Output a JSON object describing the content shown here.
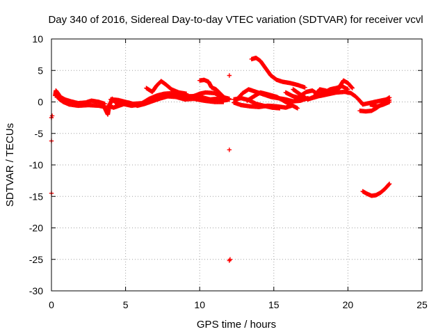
{
  "chart_data": {
    "type": "scatter",
    "title": "Day 340 of 2016, Sidereal Day-to-day VTEC variation (SDTVAR) for receiver vcvl",
    "xlabel": "GPS time / hours",
    "ylabel": "SDTVAR / TECUs",
    "xlim": [
      0,
      25
    ],
    "ylim": [
      -30,
      10
    ],
    "xticks": [
      0,
      5,
      10,
      15,
      20,
      25
    ],
    "yticks": [
      -30,
      -25,
      -20,
      -15,
      -10,
      -5,
      0,
      5,
      10
    ],
    "xtick_labels": [
      "0",
      "5",
      "10",
      "15",
      "20",
      "25"
    ],
    "ytick_labels": [
      "-30",
      "-25",
      "-20",
      "-15",
      "-10",
      "-5",
      "0",
      "5",
      "10"
    ],
    "grid": true,
    "marker": "plus",
    "colors": {
      "series": "#ff0000",
      "axis": "#000000",
      "grid": "#a0a0a0"
    },
    "series": [
      {
        "name": "SDTVAR",
        "polylines": [
          [
            [
              0.25,
              1.0
            ],
            [
              0.3,
              1.8
            ],
            [
              0.4,
              1.5
            ],
            [
              0.6,
              0.8
            ],
            [
              0.9,
              0.4
            ],
            [
              1.3,
              0.1
            ],
            [
              1.8,
              -0.2
            ],
            [
              2.3,
              -0.1
            ],
            [
              2.7,
              0.2
            ],
            [
              3.2,
              0.0
            ],
            [
              3.6,
              -0.3
            ]
          ],
          [
            [
              0.3,
              1.2
            ],
            [
              0.5,
              0.5
            ],
            [
              0.8,
              0.0
            ],
            [
              1.2,
              -0.4
            ],
            [
              1.8,
              -0.6
            ],
            [
              2.5,
              -0.5
            ],
            [
              3.2,
              -0.6
            ],
            [
              3.6,
              -0.8
            ]
          ],
          [
            [
              3.5,
              -0.5
            ],
            [
              3.7,
              -1.5
            ],
            [
              3.8,
              -2.0
            ],
            [
              3.9,
              -0.6
            ],
            [
              4.1,
              0.5
            ],
            [
              4.3,
              0.0
            ]
          ],
          [
            [
              3.8,
              -0.6
            ],
            [
              4.2,
              -0.9
            ],
            [
              4.8,
              -0.4
            ],
            [
              5.2,
              -0.1
            ],
            [
              5.8,
              -0.6
            ],
            [
              6.3,
              -0.3
            ],
            [
              6.9,
              0.2
            ],
            [
              7.4,
              0.6
            ],
            [
              8.0,
              1.0
            ],
            [
              8.6,
              1.2
            ],
            [
              9.1,
              0.9
            ],
            [
              9.6,
              0.9
            ],
            [
              10.0,
              1.3
            ],
            [
              10.4,
              1.5
            ],
            [
              11.0,
              1.4
            ],
            [
              11.5,
              0.8
            ],
            [
              12.0,
              0.5
            ]
          ],
          [
            [
              4.0,
              0.4
            ],
            [
              4.5,
              0.3
            ],
            [
              5.0,
              0.0
            ],
            [
              5.5,
              -0.3
            ],
            [
              6.1,
              -0.2
            ],
            [
              6.6,
              0.5
            ],
            [
              7.1,
              1.0
            ],
            [
              7.6,
              1.3
            ],
            [
              8.2,
              1.4
            ],
            [
              8.7,
              1.0
            ],
            [
              9.2,
              0.7
            ],
            [
              9.7,
              1.0
            ],
            [
              10.2,
              0.7
            ],
            [
              10.7,
              0.4
            ],
            [
              11.2,
              0.5
            ],
            [
              11.8,
              0.3
            ],
            [
              12.0,
              0.4
            ]
          ],
          [
            [
              4.3,
              -0.1
            ],
            [
              4.8,
              -0.3
            ],
            [
              5.4,
              -0.6
            ],
            [
              6.0,
              -0.4
            ],
            [
              6.6,
              0.0
            ],
            [
              7.2,
              0.5
            ],
            [
              7.8,
              0.9
            ],
            [
              8.4,
              0.8
            ],
            [
              9.0,
              0.4
            ],
            [
              9.6,
              0.5
            ],
            [
              10.3,
              0.2
            ],
            [
              11.0,
              0.0
            ],
            [
              11.6,
              0.0
            ]
          ],
          [
            [
              6.4,
              2.2
            ],
            [
              6.8,
              1.6
            ],
            [
              7.1,
              2.6
            ],
            [
              7.4,
              3.3
            ],
            [
              7.7,
              2.8
            ],
            [
              8.1,
              2.0
            ],
            [
              8.6,
              1.5
            ],
            [
              9.1,
              1.3
            ]
          ],
          [
            [
              10.0,
              3.4
            ],
            [
              10.3,
              3.5
            ],
            [
              10.6,
              3.2
            ],
            [
              10.8,
              2.3
            ],
            [
              11.1,
              2.0
            ],
            [
              11.4,
              1.3
            ],
            [
              11.7,
              0.6
            ]
          ],
          [
            [
              12.3,
              0.4
            ],
            [
              12.8,
              0.6
            ],
            [
              13.3,
              0.3
            ],
            [
              13.8,
              -0.3
            ],
            [
              14.3,
              -0.6
            ],
            [
              14.9,
              -0.9
            ],
            [
              15.4,
              -1.0
            ]
          ],
          [
            [
              12.3,
              -0.1
            ],
            [
              12.8,
              -0.5
            ],
            [
              13.4,
              -0.7
            ],
            [
              14.0,
              -0.8
            ],
            [
              14.6,
              -0.6
            ],
            [
              15.2,
              -0.7
            ],
            [
              15.8,
              -0.9
            ],
            [
              16.2,
              -0.6
            ]
          ],
          [
            [
              12.4,
              0.1
            ],
            [
              12.9,
              1.4
            ],
            [
              13.3,
              2.0
            ],
            [
              13.8,
              1.6
            ],
            [
              14.3,
              1.2
            ],
            [
              14.8,
              0.8
            ],
            [
              15.3,
              0.6
            ],
            [
              15.8,
              0.4
            ],
            [
              16.3,
              0.1
            ],
            [
              16.8,
              0.2
            ],
            [
              17.3,
              0.6
            ]
          ],
          [
            [
              13.2,
              0.2
            ],
            [
              13.6,
              0.8
            ],
            [
              14.1,
              1.5
            ],
            [
              14.6,
              1.2
            ],
            [
              15.2,
              0.8
            ],
            [
              15.8,
              0.0
            ],
            [
              16.2,
              -0.5
            ],
            [
              16.6,
              -1.0
            ]
          ],
          [
            [
              13.5,
              6.8
            ],
            [
              13.8,
              7.0
            ],
            [
              14.1,
              6.5
            ],
            [
              14.4,
              5.5
            ],
            [
              14.8,
              4.2
            ],
            [
              15.2,
              3.5
            ],
            [
              15.6,
              3.2
            ],
            [
              16.1,
              3.0
            ],
            [
              16.6,
              2.7
            ],
            [
              17.1,
              2.3
            ]
          ],
          [
            [
              16.3,
              2.0
            ],
            [
              16.6,
              1.5
            ],
            [
              16.9,
              1.0
            ],
            [
              17.3,
              0.4
            ],
            [
              17.7,
              0.8
            ],
            [
              18.1,
              2.0
            ],
            [
              18.5,
              1.8
            ],
            [
              18.9,
              1.4
            ],
            [
              19.3,
              1.9
            ],
            [
              19.7,
              3.4
            ],
            [
              20.0,
              3.0
            ],
            [
              20.3,
              2.2
            ]
          ],
          [
            [
              16.4,
              0.2
            ],
            [
              16.8,
              1.0
            ],
            [
              17.2,
              1.6
            ],
            [
              17.6,
              1.8
            ],
            [
              18.0,
              1.2
            ],
            [
              18.4,
              1.5
            ],
            [
              18.8,
              2.0
            ],
            [
              19.2,
              2.2
            ],
            [
              19.6,
              2.5
            ],
            [
              20.0,
              2.0
            ]
          ],
          [
            [
              15.8,
              1.5
            ],
            [
              16.3,
              0.9
            ],
            [
              16.8,
              0.6
            ],
            [
              17.4,
              0.5
            ],
            [
              18.0,
              0.9
            ],
            [
              18.6,
              1.2
            ],
            [
              19.2,
              1.5
            ],
            [
              19.8,
              1.6
            ],
            [
              20.2,
              1.4
            ],
            [
              20.5,
              0.9
            ],
            [
              20.8,
              0.2
            ],
            [
              21.0,
              -0.4
            ],
            [
              21.4,
              -0.2
            ],
            [
              21.8,
              0.0
            ],
            [
              22.2,
              0.2
            ],
            [
              22.6,
              0.4
            ],
            [
              22.8,
              0.7
            ]
          ],
          [
            [
              20.8,
              -1.4
            ],
            [
              21.2,
              -1.5
            ],
            [
              21.6,
              -1.4
            ],
            [
              21.9,
              -1.0
            ],
            [
              22.2,
              -0.5
            ],
            [
              22.5,
              0.0
            ],
            [
              22.8,
              0.3
            ]
          ],
          [
            [
              21.5,
              -0.4
            ],
            [
              22.0,
              -0.7
            ],
            [
              22.4,
              -0.4
            ],
            [
              22.8,
              0.0
            ]
          ],
          [
            [
              21.0,
              -14.2
            ],
            [
              21.3,
              -14.6
            ],
            [
              21.6,
              -14.9
            ],
            [
              21.9,
              -14.8
            ],
            [
              22.2,
              -14.4
            ],
            [
              22.5,
              -13.8
            ],
            [
              22.8,
              -13.0
            ]
          ]
        ],
        "points": [
          [
            0.0,
            -2.5
          ],
          [
            0.05,
            -2.2
          ],
          [
            0.0,
            -6.2
          ],
          [
            0.0,
            -14.5
          ],
          [
            12.0,
            4.2
          ],
          [
            12.0,
            -7.6
          ],
          [
            12.0,
            -25.2
          ],
          [
            12.05,
            -25.0
          ]
        ]
      }
    ]
  }
}
